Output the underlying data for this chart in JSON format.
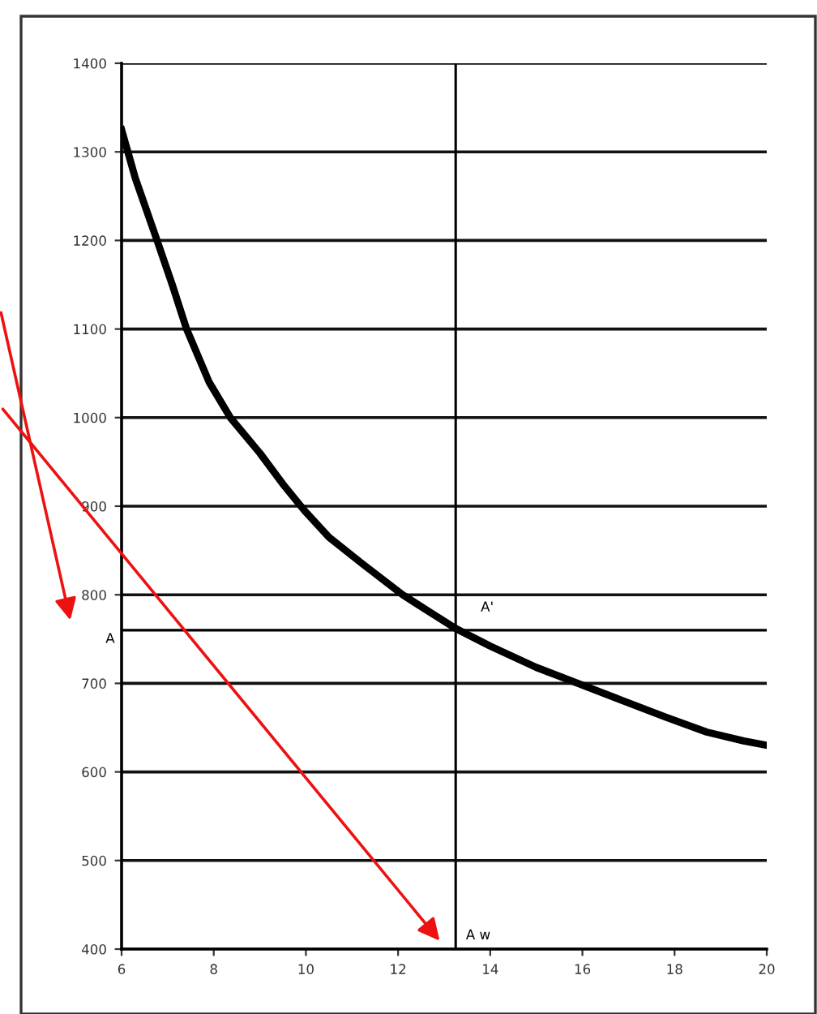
{
  "chart_data": {
    "type": "line",
    "x": [
      6,
      6.3,
      6.77,
      7.1,
      7.41,
      7.9,
      8.36,
      9.0,
      9.5,
      9.97,
      10.5,
      11.2,
      12.1,
      12.7,
      13.25,
      14,
      15,
      15.9,
      16.8,
      17.8,
      18.7,
      19.5,
      20
    ],
    "series": [
      {
        "color": "#000000",
        "values": [
          1325,
          1270,
          1200,
          1150,
          1100,
          1040,
          1000,
          960,
          925,
          895,
          865,
          836,
          800,
          780,
          762,
          742,
          718,
          700,
          682,
          662,
          645,
          635,
          630
        ]
      }
    ],
    "xlim": [
      6,
      20
    ],
    "xticks": [
      6,
      8,
      10,
      12,
      14,
      16,
      18,
      20
    ],
    "ylim": [
      400,
      1400
    ],
    "yticks": [
      400,
      500,
      600,
      700,
      800,
      900,
      1000,
      1100,
      1200,
      1300,
      1400
    ],
    "grid": "y",
    "marker": "none",
    "line_style": "solid",
    "legend": false,
    "ref_lines": [
      {
        "axis": "y",
        "value": 760,
        "label": "A",
        "color": "#000000"
      },
      {
        "axis": "x",
        "value": 13.25,
        "label": "A w",
        "color": "#000000"
      }
    ],
    "annotations": [
      {
        "text": "A'",
        "x": 13.25,
        "y": 760
      }
    ]
  }
}
